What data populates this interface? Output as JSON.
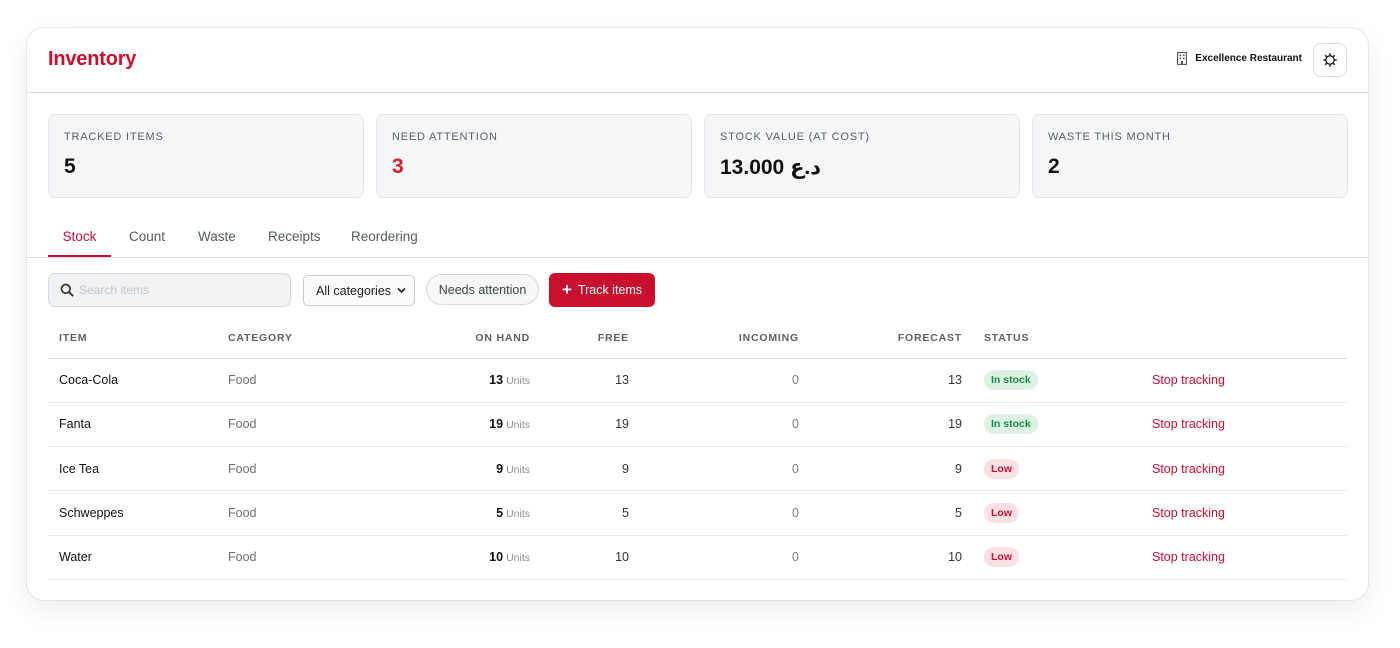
{
  "header": {
    "title": "Inventory",
    "restaurant": "Excellence Restaurant"
  },
  "stats": [
    {
      "label": "Tracked items",
      "value": "5"
    },
    {
      "label": "Need attention",
      "value": "3"
    },
    {
      "label": "Stock value (at cost)",
      "value": "13.000  د.ع"
    },
    {
      "label": "Waste this month",
      "value": "2"
    }
  ],
  "tabs": [
    "Stock",
    "Count",
    "Waste",
    "Receipts",
    "Reordering"
  ],
  "toolbar": {
    "search_value": "",
    "search_placeholder": "Search items",
    "category_selected": "All categories",
    "needs_attention_label": "Needs attention",
    "track_items_label": "Track items"
  },
  "table": {
    "columns": [
      "Item",
      "Category",
      "On hand",
      "Free",
      "Incoming",
      "Forecast",
      "Status"
    ],
    "rows": [
      {
        "item": "Coca-Cola",
        "category": "Food",
        "on_hand": "13",
        "unit": "Units",
        "free": "13",
        "incoming": "0",
        "forecast": "13",
        "status": "In stock",
        "action": "Stop tracking"
      },
      {
        "item": "Fanta",
        "category": "Food",
        "on_hand": "19",
        "unit": "Units",
        "free": "19",
        "incoming": "0",
        "forecast": "19",
        "status": "In stock",
        "action": "Stop tracking"
      },
      {
        "item": "Ice Tea",
        "category": "Food",
        "on_hand": "9",
        "unit": "Units",
        "free": "9",
        "incoming": "0",
        "forecast": "9",
        "status": "Low",
        "action": "Stop tracking"
      },
      {
        "item": "Schweppes",
        "category": "Food",
        "on_hand": "5",
        "unit": "Units",
        "free": "5",
        "incoming": "0",
        "forecast": "5",
        "status": "Low",
        "action": "Stop tracking"
      },
      {
        "item": "Water",
        "category": "Food",
        "on_hand": "10",
        "unit": "Units",
        "free": "10",
        "incoming": "0",
        "forecast": "10",
        "status": "Low",
        "action": "Stop tracking"
      }
    ]
  },
  "colors": {
    "accent": "#c8102e",
    "in_stock_bg": "#dcf3e3",
    "in_stock_text": "#1d8a43",
    "low_bg": "#fbe1e4",
    "low_text": "#c8102e"
  },
  "icons": {
    "restaurant": "building-icon",
    "settings": "gear-icon",
    "search": "search-icon",
    "select": "chevron-down-icon",
    "track": "plus-icon"
  }
}
